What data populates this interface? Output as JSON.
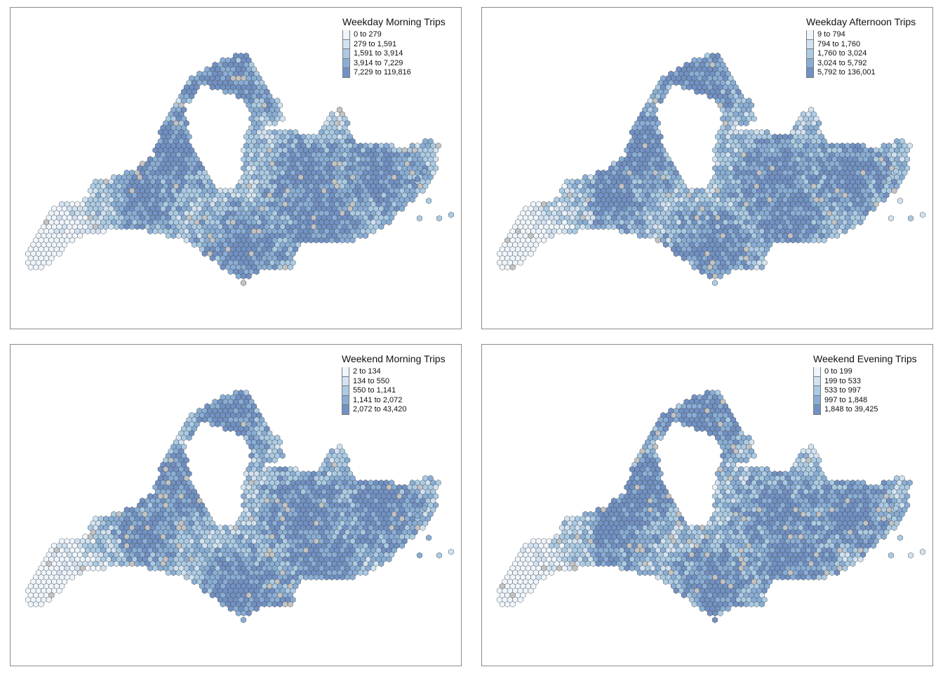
{
  "colors": {
    "classes": [
      "#eef5fc",
      "#d2e2f1",
      "#abcbe4",
      "#89aed6",
      "#7191c4"
    ],
    "missing": "#c3c3c3",
    "hex_stroke": "#4a4a4a"
  },
  "panels": [
    {
      "title": "Weekday Morning Trips",
      "legend": [
        "0 to 279",
        "279 to 1,591",
        "1,591 to 3,914",
        "3,914 to 7,229",
        "7,229 to 119,816"
      ]
    },
    {
      "title": "Weekday Afternoon Trips",
      "legend": [
        "9 to 794",
        "794 to 1,760",
        "1,760 to 3,024",
        "3,024 to 5,792",
        "5,792 to 136,001"
      ]
    },
    {
      "title": "Weekend Morning Trips",
      "legend": [
        "2 to 134",
        "134 to 550",
        "550 to 1,141",
        "1,141 to 2,072",
        "2,072 to 43,420"
      ]
    },
    {
      "title": "Weekend Evening Trips",
      "legend": [
        "0 to 199",
        "199 to 533",
        "533 to 997",
        "997 to 1,848",
        "1,848 to 39,425"
      ]
    }
  ]
}
